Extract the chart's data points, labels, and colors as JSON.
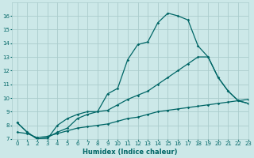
{
  "xlabel": "Humidex (Indice chaleur)",
  "background_color": "#cce8e8",
  "grid_color": "#aacccc",
  "line_color": "#006666",
  "xlim": [
    -0.5,
    23
  ],
  "ylim": [
    7,
    17
  ],
  "yticks": [
    7,
    8,
    9,
    10,
    11,
    12,
    13,
    14,
    15,
    16
  ],
  "xticks": [
    0,
    1,
    2,
    3,
    4,
    5,
    6,
    7,
    8,
    9,
    10,
    11,
    12,
    13,
    14,
    15,
    16,
    17,
    18,
    19,
    20,
    21,
    22,
    23
  ],
  "line1_x": [
    0,
    1,
    2,
    3,
    4,
    5,
    6,
    7,
    8,
    9,
    10,
    11,
    12,
    13,
    14,
    15,
    16,
    17,
    18,
    19,
    20,
    21,
    22,
    23
  ],
  "line1_y": [
    8.2,
    7.5,
    7.0,
    7.0,
    8.0,
    8.5,
    8.8,
    9.0,
    9.0,
    10.3,
    10.7,
    12.8,
    13.9,
    14.1,
    15.5,
    16.2,
    16.0,
    15.7,
    13.8,
    13.0,
    11.5,
    10.5,
    9.8,
    9.6
  ],
  "line2_x": [
    0,
    1,
    2,
    3,
    4,
    5,
    6,
    7,
    8,
    9,
    10,
    11,
    12,
    13,
    14,
    15,
    16,
    17,
    18,
    19,
    20,
    21,
    22,
    23
  ],
  "line2_y": [
    8.2,
    7.5,
    7.0,
    7.1,
    7.5,
    7.8,
    8.5,
    8.8,
    9.0,
    9.1,
    9.5,
    9.9,
    10.2,
    10.5,
    11.0,
    11.5,
    12.0,
    12.5,
    13.0,
    13.0,
    11.5,
    10.5,
    9.8,
    9.6
  ],
  "line3_x": [
    0,
    1,
    2,
    3,
    4,
    5,
    6,
    7,
    8,
    9,
    10,
    11,
    12,
    13,
    14,
    15,
    16,
    17,
    18,
    19,
    20,
    21,
    22,
    23
  ],
  "line3_y": [
    7.5,
    7.4,
    7.1,
    7.2,
    7.4,
    7.6,
    7.8,
    7.9,
    8.0,
    8.1,
    8.3,
    8.5,
    8.6,
    8.8,
    9.0,
    9.1,
    9.2,
    9.3,
    9.4,
    9.5,
    9.6,
    9.7,
    9.8,
    9.9
  ]
}
